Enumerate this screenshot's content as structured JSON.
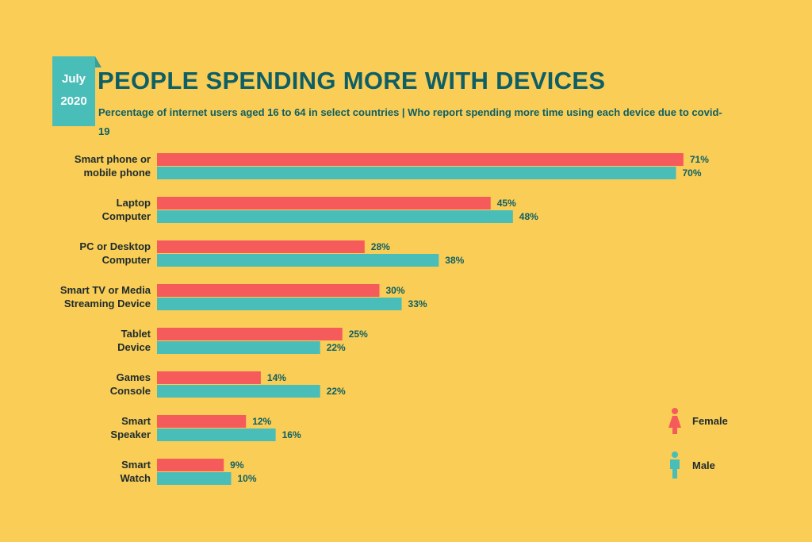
{
  "date_badge": {
    "month": "July",
    "year": "2020"
  },
  "header": {
    "title": "PEOPLE SPENDING MORE WITH DEVICES",
    "subtitle": "Percentage of internet users aged 16 to 64 in select countries | Who report spending more time using each device due to covid-19"
  },
  "colors": {
    "female": "#f65b5b",
    "male": "#49bdb8",
    "background": "#f9cd56",
    "title": "#0e5f65"
  },
  "chart_data": {
    "type": "bar",
    "orientation": "horizontal",
    "title": "PEOPLE SPENDING MORE WITH DEVICES",
    "categories": [
      [
        "Smart phone or",
        "mobile phone"
      ],
      [
        "Laptop",
        "Computer"
      ],
      [
        "PC or Desktop",
        "Computer"
      ],
      [
        "Smart TV or Media",
        "Streaming Device"
      ],
      [
        "Tablet",
        "Device"
      ],
      [
        "Games",
        "Console"
      ],
      [
        "Smart",
        "Speaker"
      ],
      [
        "Smart",
        "Watch"
      ]
    ],
    "series": [
      {
        "name": "Female",
        "color": "#f65b5b",
        "values": [
          71,
          45,
          28,
          30,
          25,
          14,
          12,
          9
        ]
      },
      {
        "name": "Male",
        "color": "#49bdb8",
        "values": [
          70,
          48,
          38,
          33,
          22,
          22,
          16,
          10
        ]
      }
    ],
    "value_suffix": "%",
    "xlim": [
      0,
      100
    ],
    "grid": false,
    "legend": {
      "position": "right",
      "icons": [
        "female-icon",
        "male-icon"
      ]
    }
  }
}
